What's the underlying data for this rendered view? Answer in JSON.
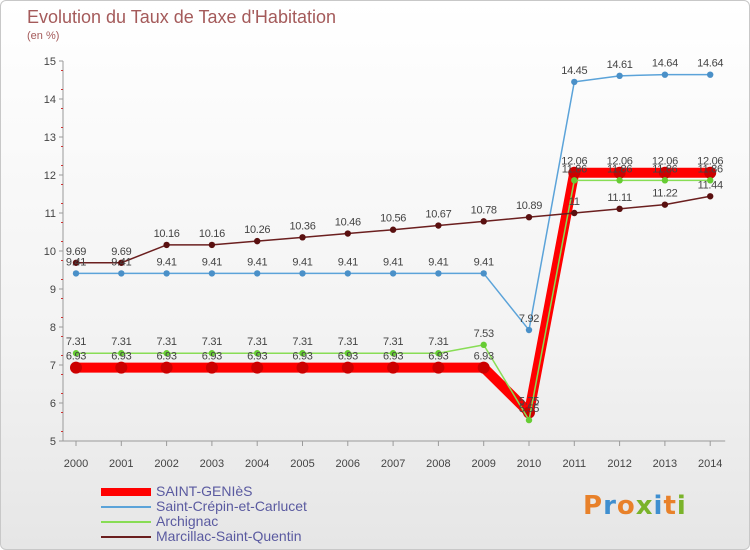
{
  "title": "Evolution du Taux de Taxe d'Habitation",
  "subtitle": "(en %)",
  "logo": {
    "text": "Proxiti",
    "colors": [
      "#e8812a",
      "#3f8fd0",
      "#e8812a",
      "#7ab32a",
      "#3f8fd0",
      "#e8812a",
      "#7ab32a"
    ]
  },
  "chart_data": {
    "type": "line",
    "x": [
      "2000",
      "2001",
      "2002",
      "2003",
      "2004",
      "2005",
      "2006",
      "2007",
      "2008",
      "2009",
      "2010",
      "2011",
      "2012",
      "2013",
      "2014"
    ],
    "ylim": [
      5,
      15
    ],
    "yticks": [
      5,
      6,
      7,
      8,
      9,
      10,
      11,
      12,
      13,
      14,
      15
    ],
    "grid": false,
    "legend_position": "bottom-left",
    "series": [
      {
        "name": "SAINT-GENIèS",
        "color": "#ff0000",
        "values": [
          6.93,
          6.93,
          6.93,
          6.93,
          6.93,
          6.93,
          6.93,
          6.93,
          6.93,
          6.93,
          5.75,
          12.06,
          12.06,
          12.06,
          12.06
        ],
        "labels": [
          "6.93",
          "6.93",
          "6.93",
          "6.93",
          "6.93",
          "6.93",
          "6.93",
          "6.93",
          "6.93",
          "6.93",
          "5.75",
          "12.06",
          "12.06",
          "12.06",
          "12.06"
        ]
      },
      {
        "name": "Saint-Crépin-et-Carlucet",
        "color": "#5ba3d9",
        "values": [
          9.41,
          9.41,
          9.41,
          9.41,
          9.41,
          9.41,
          9.41,
          9.41,
          9.41,
          9.41,
          7.92,
          14.45,
          14.61,
          14.64,
          14.64
        ],
        "labels": [
          "9.41",
          "9.41",
          "9.41",
          "9.41",
          "9.41",
          "9.41",
          "9.41",
          "9.41",
          "9.41",
          "9.41",
          "7.92",
          "14.45",
          "14.61",
          "14.64",
          "14.64"
        ]
      },
      {
        "name": "Archignac",
        "color": "#88dd55",
        "values": [
          7.31,
          7.31,
          7.31,
          7.31,
          7.31,
          7.31,
          7.31,
          7.31,
          7.31,
          7.53,
          5.55,
          11.86,
          11.86,
          11.86,
          11.86
        ],
        "labels": [
          "7.31",
          "7.31",
          "7.31",
          "7.31",
          "7.31",
          "7.31",
          "7.31",
          "7.31",
          "7.31",
          "7.53",
          "5.55",
          "11.86",
          "11.86",
          "11.86",
          "11.86"
        ]
      },
      {
        "name": "Marcillac-Saint-Quentin",
        "color": "#6b1f1f",
        "values": [
          9.69,
          9.69,
          10.16,
          10.16,
          10.26,
          10.36,
          10.46,
          10.56,
          10.67,
          10.78,
          10.89,
          11.0,
          11.11,
          11.22,
          11.44
        ],
        "labels": [
          "9.69",
          "9.69",
          "10.16",
          "10.16",
          "10.26",
          "10.36",
          "10.46",
          "10.56",
          "10.67",
          "10.78",
          "10.89",
          "11",
          "11.11",
          "11.22",
          "11.44"
        ]
      }
    ]
  }
}
